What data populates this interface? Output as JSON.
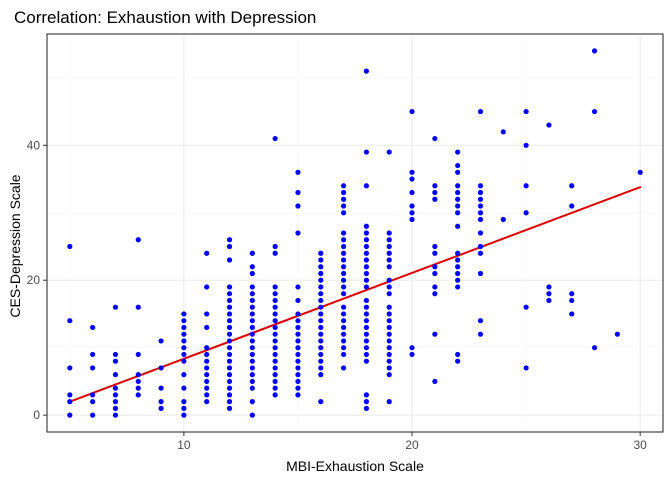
{
  "chart_data": {
    "type": "scatter",
    "title": "Correlation: Exhaustion with Depression",
    "xlabel": "MBI-Exhaustion Scale",
    "ylabel": "CES-Depression Scale",
    "xlim": [
      4.0,
      31.0
    ],
    "ylim": [
      -2.5,
      56.5
    ],
    "x_ticks": [
      10,
      20,
      30
    ],
    "y_ticks": [
      0,
      20,
      40
    ],
    "grid": true,
    "point_color": "#0000ff",
    "fit_color": "#dd0000",
    "regression_line": {
      "x": [
        5,
        30
      ],
      "y": [
        2.0,
        33.8
      ]
    },
    "points": [
      [
        5,
        0
      ],
      [
        5,
        2
      ],
      [
        5,
        3
      ],
      [
        5,
        7
      ],
      [
        5,
        14
      ],
      [
        5,
        25
      ],
      [
        6,
        0
      ],
      [
        6,
        2
      ],
      [
        6,
        3
      ],
      [
        6,
        7
      ],
      [
        6,
        9
      ],
      [
        6,
        13
      ],
      [
        7,
        0
      ],
      [
        7,
        1
      ],
      [
        7,
        2
      ],
      [
        7,
        3
      ],
      [
        7,
        4
      ],
      [
        7,
        6
      ],
      [
        7,
        8
      ],
      [
        7,
        9
      ],
      [
        7,
        16
      ],
      [
        8,
        3
      ],
      [
        8,
        4
      ],
      [
        8,
        5
      ],
      [
        8,
        6
      ],
      [
        8,
        9
      ],
      [
        8,
        16
      ],
      [
        8,
        26
      ],
      [
        9,
        1
      ],
      [
        9,
        2
      ],
      [
        9,
        4
      ],
      [
        9,
        7
      ],
      [
        9,
        11
      ],
      [
        10,
        0
      ],
      [
        10,
        1
      ],
      [
        10,
        2
      ],
      [
        10,
        4
      ],
      [
        10,
        6
      ],
      [
        10,
        8
      ],
      [
        10,
        9
      ],
      [
        10,
        10
      ],
      [
        10,
        11
      ],
      [
        10,
        12
      ],
      [
        10,
        13
      ],
      [
        10,
        14
      ],
      [
        10,
        15
      ],
      [
        11,
        2
      ],
      [
        11,
        3
      ],
      [
        11,
        4
      ],
      [
        11,
        5
      ],
      [
        11,
        6
      ],
      [
        11,
        7
      ],
      [
        11,
        8
      ],
      [
        11,
        9
      ],
      [
        11,
        10
      ],
      [
        11,
        13
      ],
      [
        11,
        15
      ],
      [
        11,
        19
      ],
      [
        11,
        24
      ],
      [
        12,
        1
      ],
      [
        12,
        2
      ],
      [
        12,
        3
      ],
      [
        12,
        4
      ],
      [
        12,
        5
      ],
      [
        12,
        6
      ],
      [
        12,
        7
      ],
      [
        12,
        8
      ],
      [
        12,
        9
      ],
      [
        12,
        10
      ],
      [
        12,
        11
      ],
      [
        12,
        12
      ],
      [
        12,
        13
      ],
      [
        12,
        14
      ],
      [
        12,
        15
      ],
      [
        12,
        16
      ],
      [
        12,
        17
      ],
      [
        12,
        18
      ],
      [
        12,
        19
      ],
      [
        12,
        23
      ],
      [
        12,
        25
      ],
      [
        12,
        26
      ],
      [
        13,
        0
      ],
      [
        13,
        2
      ],
      [
        13,
        4
      ],
      [
        13,
        5
      ],
      [
        13,
        6
      ],
      [
        13,
        7
      ],
      [
        13,
        8
      ],
      [
        13,
        9
      ],
      [
        13,
        10
      ],
      [
        13,
        11
      ],
      [
        13,
        12
      ],
      [
        13,
        13
      ],
      [
        13,
        14
      ],
      [
        13,
        15
      ],
      [
        13,
        16
      ],
      [
        13,
        17
      ],
      [
        13,
        18
      ],
      [
        13,
        19
      ],
      [
        13,
        21
      ],
      [
        13,
        22
      ],
      [
        13,
        24
      ],
      [
        14,
        3
      ],
      [
        14,
        4
      ],
      [
        14,
        5
      ],
      [
        14,
        6
      ],
      [
        14,
        7
      ],
      [
        14,
        8
      ],
      [
        14,
        9
      ],
      [
        14,
        10
      ],
      [
        14,
        11
      ],
      [
        14,
        12
      ],
      [
        14,
        13
      ],
      [
        14,
        14
      ],
      [
        14,
        15
      ],
      [
        14,
        16
      ],
      [
        14,
        17
      ],
      [
        14,
        18
      ],
      [
        14,
        19
      ],
      [
        14,
        24
      ],
      [
        14,
        25
      ],
      [
        14,
        41
      ],
      [
        15,
        3
      ],
      [
        15,
        4
      ],
      [
        15,
        5
      ],
      [
        15,
        6
      ],
      [
        15,
        7
      ],
      [
        15,
        8
      ],
      [
        15,
        9
      ],
      [
        15,
        10
      ],
      [
        15,
        11
      ],
      [
        15,
        12
      ],
      [
        15,
        13
      ],
      [
        15,
        14
      ],
      [
        15,
        15
      ],
      [
        15,
        17
      ],
      [
        15,
        19
      ],
      [
        15,
        27
      ],
      [
        15,
        31
      ],
      [
        15,
        33
      ],
      [
        15,
        36
      ],
      [
        16,
        2
      ],
      [
        16,
        6
      ],
      [
        16,
        7
      ],
      [
        16,
        8
      ],
      [
        16,
        9
      ],
      [
        16,
        10
      ],
      [
        16,
        11
      ],
      [
        16,
        12
      ],
      [
        16,
        13
      ],
      [
        16,
        14
      ],
      [
        16,
        15
      ],
      [
        16,
        16
      ],
      [
        16,
        17
      ],
      [
        16,
        18
      ],
      [
        16,
        19
      ],
      [
        16,
        20
      ],
      [
        16,
        21
      ],
      [
        16,
        22
      ],
      [
        16,
        23
      ],
      [
        16,
        24
      ],
      [
        17,
        7
      ],
      [
        17,
        9
      ],
      [
        17,
        10
      ],
      [
        17,
        11
      ],
      [
        17,
        12
      ],
      [
        17,
        13
      ],
      [
        17,
        14
      ],
      [
        17,
        15
      ],
      [
        17,
        16
      ],
      [
        17,
        18
      ],
      [
        17,
        19
      ],
      [
        17,
        20
      ],
      [
        17,
        21
      ],
      [
        17,
        22
      ],
      [
        17,
        23
      ],
      [
        17,
        24
      ],
      [
        17,
        25
      ],
      [
        17,
        26
      ],
      [
        17,
        27
      ],
      [
        17,
        30
      ],
      [
        17,
        31
      ],
      [
        17,
        32
      ],
      [
        17,
        33
      ],
      [
        17,
        34
      ],
      [
        18,
        1
      ],
      [
        18,
        2
      ],
      [
        18,
        3
      ],
      [
        18,
        8
      ],
      [
        18,
        9
      ],
      [
        18,
        10
      ],
      [
        18,
        11
      ],
      [
        18,
        12
      ],
      [
        18,
        13
      ],
      [
        18,
        14
      ],
      [
        18,
        15
      ],
      [
        18,
        16
      ],
      [
        18,
        17
      ],
      [
        18,
        19
      ],
      [
        18,
        20
      ],
      [
        18,
        21
      ],
      [
        18,
        22
      ],
      [
        18,
        23
      ],
      [
        18,
        24
      ],
      [
        18,
        25
      ],
      [
        18,
        26
      ],
      [
        18,
        27
      ],
      [
        18,
        28
      ],
      [
        18,
        34
      ],
      [
        18,
        39
      ],
      [
        18,
        51
      ],
      [
        19,
        2
      ],
      [
        19,
        6
      ],
      [
        19,
        7
      ],
      [
        19,
        8
      ],
      [
        19,
        9
      ],
      [
        19,
        10
      ],
      [
        19,
        11
      ],
      [
        19,
        12
      ],
      [
        19,
        13
      ],
      [
        19,
        14
      ],
      [
        19,
        15
      ],
      [
        19,
        16
      ],
      [
        19,
        18
      ],
      [
        19,
        19
      ],
      [
        19,
        20
      ],
      [
        19,
        22
      ],
      [
        19,
        23
      ],
      [
        19,
        24
      ],
      [
        19,
        25
      ],
      [
        19,
        26
      ],
      [
        19,
        27
      ],
      [
        19,
        39
      ],
      [
        20,
        9
      ],
      [
        20,
        10
      ],
      [
        20,
        29
      ],
      [
        20,
        30
      ],
      [
        20,
        31
      ],
      [
        20,
        33
      ],
      [
        20,
        35
      ],
      [
        20,
        36
      ],
      [
        20,
        45
      ],
      [
        21,
        5
      ],
      [
        21,
        12
      ],
      [
        21,
        18
      ],
      [
        21,
        19
      ],
      [
        21,
        21
      ],
      [
        21,
        22
      ],
      [
        21,
        24
      ],
      [
        21,
        25
      ],
      [
        21,
        32
      ],
      [
        21,
        33
      ],
      [
        21,
        34
      ],
      [
        21,
        41
      ],
      [
        22,
        8
      ],
      [
        22,
        9
      ],
      [
        22,
        19
      ],
      [
        22,
        20
      ],
      [
        22,
        21
      ],
      [
        22,
        22
      ],
      [
        22,
        23
      ],
      [
        22,
        24
      ],
      [
        22,
        28
      ],
      [
        22,
        30
      ],
      [
        22,
        31
      ],
      [
        22,
        32
      ],
      [
        22,
        33
      ],
      [
        22,
        34
      ],
      [
        22,
        36
      ],
      [
        22,
        37
      ],
      [
        22,
        39
      ],
      [
        23,
        12
      ],
      [
        23,
        14
      ],
      [
        23,
        21
      ],
      [
        23,
        24
      ],
      [
        23,
        25
      ],
      [
        23,
        27
      ],
      [
        23,
        29
      ],
      [
        23,
        30
      ],
      [
        23,
        31
      ],
      [
        23,
        32
      ],
      [
        23,
        33
      ],
      [
        23,
        34
      ],
      [
        23,
        45
      ],
      [
        24,
        29
      ],
      [
        24,
        42
      ],
      [
        25,
        7
      ],
      [
        25,
        16
      ],
      [
        25,
        30
      ],
      [
        25,
        34
      ],
      [
        25,
        40
      ],
      [
        25,
        45
      ],
      [
        26,
        17
      ],
      [
        26,
        18
      ],
      [
        26,
        19
      ],
      [
        26,
        43
      ],
      [
        27,
        15
      ],
      [
        27,
        17
      ],
      [
        27,
        18
      ],
      [
        27,
        31
      ],
      [
        27,
        34
      ],
      [
        28,
        10
      ],
      [
        28,
        45
      ],
      [
        28,
        54
      ],
      [
        29,
        12
      ],
      [
        30,
        36
      ]
    ]
  }
}
